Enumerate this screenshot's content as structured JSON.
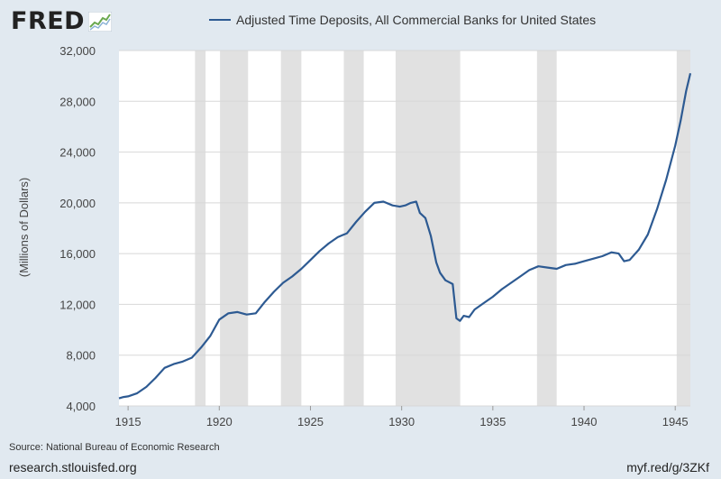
{
  "header": {
    "logo_text": "FRED",
    "logo_icon": "fred-chart-icon"
  },
  "colors": {
    "background": "#e1e9f0",
    "plot_background": "#ffffff",
    "series": "#2d5a92",
    "recession": "#e1e1e1",
    "grid": "#d8d8d8"
  },
  "chart_data": {
    "type": "line",
    "title": "",
    "xlabel": "",
    "ylabel": "(Millions of Dollars)",
    "xlim": [
      1914.5,
      1945.83
    ],
    "ylim": [
      4000,
      32000
    ],
    "x_ticks": [
      1915,
      1920,
      1925,
      1930,
      1935,
      1940,
      1945
    ],
    "y_ticks": [
      4000,
      8000,
      12000,
      16000,
      20000,
      24000,
      28000,
      32000
    ],
    "y_tick_labels": [
      "4,000",
      "8,000",
      "12,000",
      "16,000",
      "20,000",
      "24,000",
      "28,000",
      "32,000"
    ],
    "grid": true,
    "legend_position": "top",
    "recessions": [
      [
        1918.67,
        1919.25
      ],
      [
        1920.04,
        1921.58
      ],
      [
        1923.38,
        1924.5
      ],
      [
        1926.83,
        1927.92
      ],
      [
        1929.67,
        1933.21
      ],
      [
        1937.42,
        1938.5
      ],
      [
        1945.08,
        1945.83
      ]
    ],
    "series": [
      {
        "name": "Adjusted Time Deposits, All Commercial Banks for United States",
        "x": [
          1914.5,
          1914.75,
          1915.0,
          1915.5,
          1916.0,
          1916.5,
          1917.0,
          1917.5,
          1918.0,
          1918.5,
          1919.0,
          1919.5,
          1920.0,
          1920.5,
          1921.0,
          1921.5,
          1922.0,
          1922.5,
          1923.0,
          1923.5,
          1924.0,
          1924.5,
          1925.0,
          1925.5,
          1926.0,
          1926.5,
          1927.0,
          1927.5,
          1928.0,
          1928.5,
          1929.0,
          1929.5,
          1929.9,
          1930.2,
          1930.5,
          1930.8,
          1931.0,
          1931.3,
          1931.6,
          1931.9,
          1932.1,
          1932.4,
          1932.8,
          1933.0,
          1933.2,
          1933.4,
          1933.7,
          1934.0,
          1934.5,
          1935.0,
          1935.5,
          1936.0,
          1936.5,
          1937.0,
          1937.5,
          1938.0,
          1938.5,
          1939.0,
          1939.5,
          1940.0,
          1940.5,
          1941.0,
          1941.5,
          1941.9,
          1942.2,
          1942.5,
          1943.0,
          1943.5,
          1944.0,
          1944.5,
          1945.0,
          1945.3,
          1945.6,
          1945.83
        ],
        "y": [
          4600,
          4700,
          4750,
          5000,
          5500,
          6200,
          7000,
          7300,
          7500,
          7800,
          8600,
          9500,
          10800,
          11300,
          11400,
          11200,
          11300,
          12200,
          13000,
          13700,
          14200,
          14800,
          15500,
          16200,
          16800,
          17300,
          17600,
          18500,
          19300,
          20000,
          20100,
          19800,
          19700,
          19800,
          20000,
          20100,
          19200,
          18800,
          17400,
          15300,
          14500,
          13900,
          13600,
          10900,
          10700,
          11100,
          11000,
          11600,
          12100,
          12600,
          13200,
          13700,
          14200,
          14700,
          15000,
          14900,
          14800,
          15100,
          15200,
          15400,
          15600,
          15800,
          16100,
          16000,
          15400,
          15500,
          16300,
          17500,
          19500,
          21800,
          24500,
          26500,
          28800,
          30200
        ]
      }
    ]
  },
  "footer": {
    "source": "Source: National Bureau of Economic Research",
    "site": "research.stlouisfed.org",
    "shortlink": "myf.red/g/3ZKf"
  }
}
